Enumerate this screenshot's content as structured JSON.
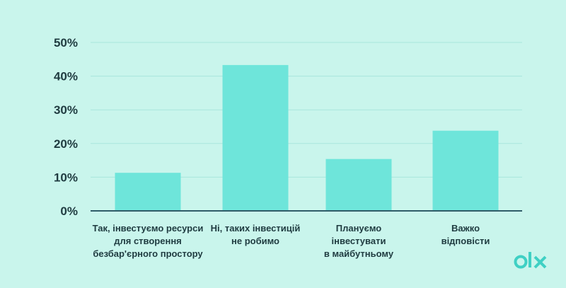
{
  "chart_data": {
    "type": "bar",
    "categories": [
      [
        "Так, інвестуємо ресурси",
        "для створення",
        "безбар'єрного простору"
      ],
      [
        "Ні, таких інвестицій",
        "не робимо"
      ],
      [
        "Плануємо",
        "інвестувати",
        "в майбутньому"
      ],
      [
        "Важко",
        "відповісти"
      ]
    ],
    "values": [
      11.3,
      43.3,
      15.4,
      23.8
    ],
    "yticks": [
      "0%",
      "10%",
      "20%",
      "30%",
      "40%",
      "50%"
    ],
    "ylim": [
      0,
      50
    ],
    "grid": true,
    "legend": "none",
    "colors": {
      "background": "#c9f5ec",
      "bar": "#6ee5da",
      "gridline": "#a9e6dd",
      "axis": "#2f5c68",
      "text": "#1f3b40",
      "logo": "#3fd0c4"
    }
  },
  "logo": {
    "text": "olx"
  }
}
